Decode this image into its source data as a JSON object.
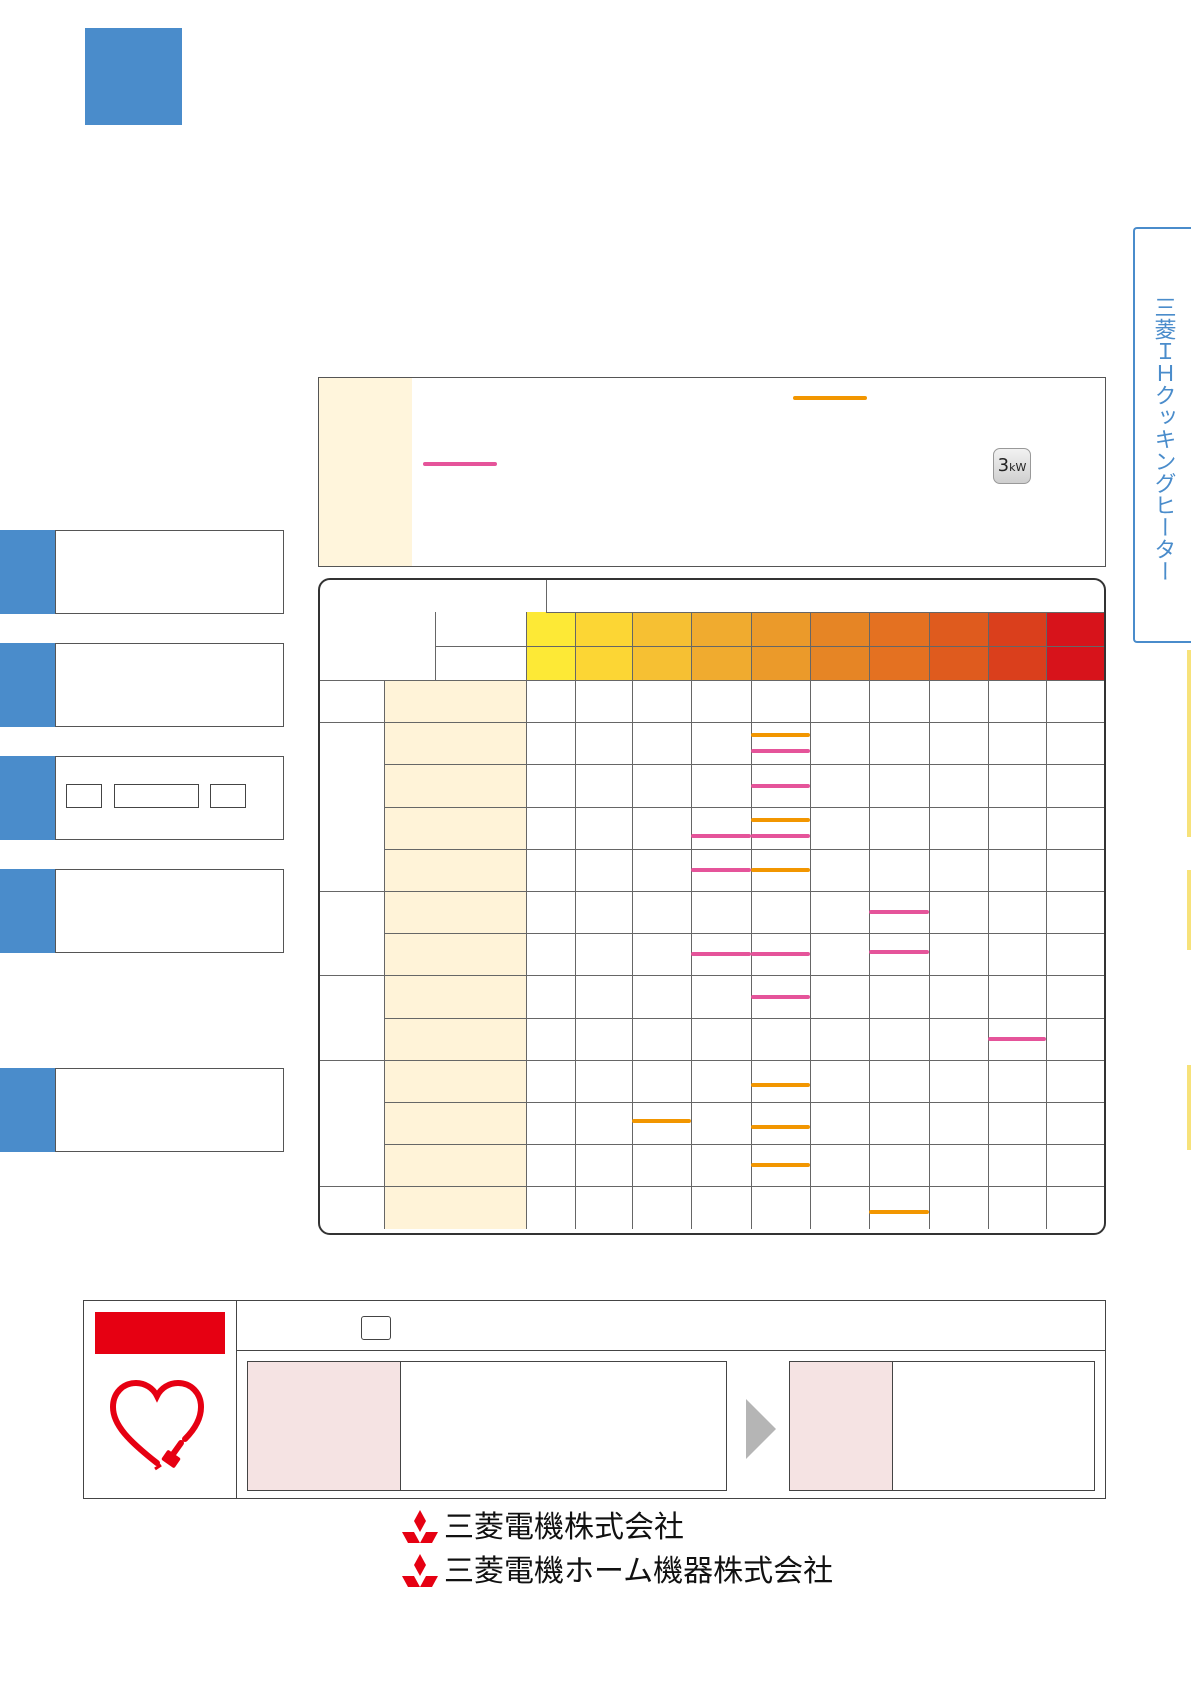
{
  "side_tab": {
    "label": "三菱ＩＨクッキングヒーター"
  },
  "note": {
    "kw_button": {
      "main": "3",
      "sub": "kW"
    }
  },
  "chart_data": {
    "type": "table",
    "columns": 10,
    "rows": 13,
    "heat_colors": [
      "#fde936",
      "#fcd634",
      "#f6c033",
      "#f0ab2f",
      "#eb9a2a",
      "#e68525",
      "#e47121",
      "#df5b1e",
      "#da3f1c",
      "#d7131b"
    ],
    "marks": [
      {
        "row": 1,
        "col": 4,
        "offset": -8,
        "color": "orange"
      },
      {
        "row": 1,
        "col": 4,
        "offset": 8,
        "color": "pink"
      },
      {
        "row": 2,
        "col": 4,
        "offset": 0,
        "color": "pink"
      },
      {
        "row": 3,
        "col": 4,
        "offset": -8,
        "color": "orange"
      },
      {
        "row": 3,
        "col": 3,
        "offset": 8,
        "color": "pink"
      },
      {
        "row": 3,
        "col": 4,
        "offset": 8,
        "color": "pink"
      },
      {
        "row": 4,
        "col": 3,
        "offset": 0,
        "color": "pink"
      },
      {
        "row": 4,
        "col": 4,
        "offset": 0,
        "color": "orange"
      },
      {
        "row": 5,
        "col": 6,
        "offset": 0,
        "color": "pink"
      },
      {
        "row": 6,
        "col": 3,
        "offset": 0,
        "color": "pink"
      },
      {
        "row": 6,
        "col": 4,
        "offset": 0,
        "color": "pink"
      },
      {
        "row": 6,
        "col": 6,
        "offset": -2,
        "color": "pink"
      },
      {
        "row": 7,
        "col": 4,
        "offset": 0,
        "color": "pink"
      },
      {
        "row": 8,
        "col": 8,
        "offset": 0,
        "color": "pink"
      },
      {
        "row": 9,
        "col": 4,
        "offset": 4,
        "color": "orange"
      },
      {
        "row": 10,
        "col": 2,
        "offset": -2,
        "color": "orange"
      },
      {
        "row": 10,
        "col": 4,
        "offset": 4,
        "color": "orange"
      },
      {
        "row": 11,
        "col": 4,
        "offset": 0,
        "color": "orange"
      },
      {
        "row": 12,
        "col": 6,
        "offset": 4,
        "color": "orange"
      }
    ],
    "mark_colors": {
      "orange": "#f29600",
      "pink": "#e5549a"
    }
  },
  "company": {
    "name_1": "三菱電機株式会社",
    "name_2": "三菱電機ホーム機器株式会社"
  },
  "colors": {
    "accent_blue": "#4a8ccb",
    "alert_red": "#e60012"
  }
}
